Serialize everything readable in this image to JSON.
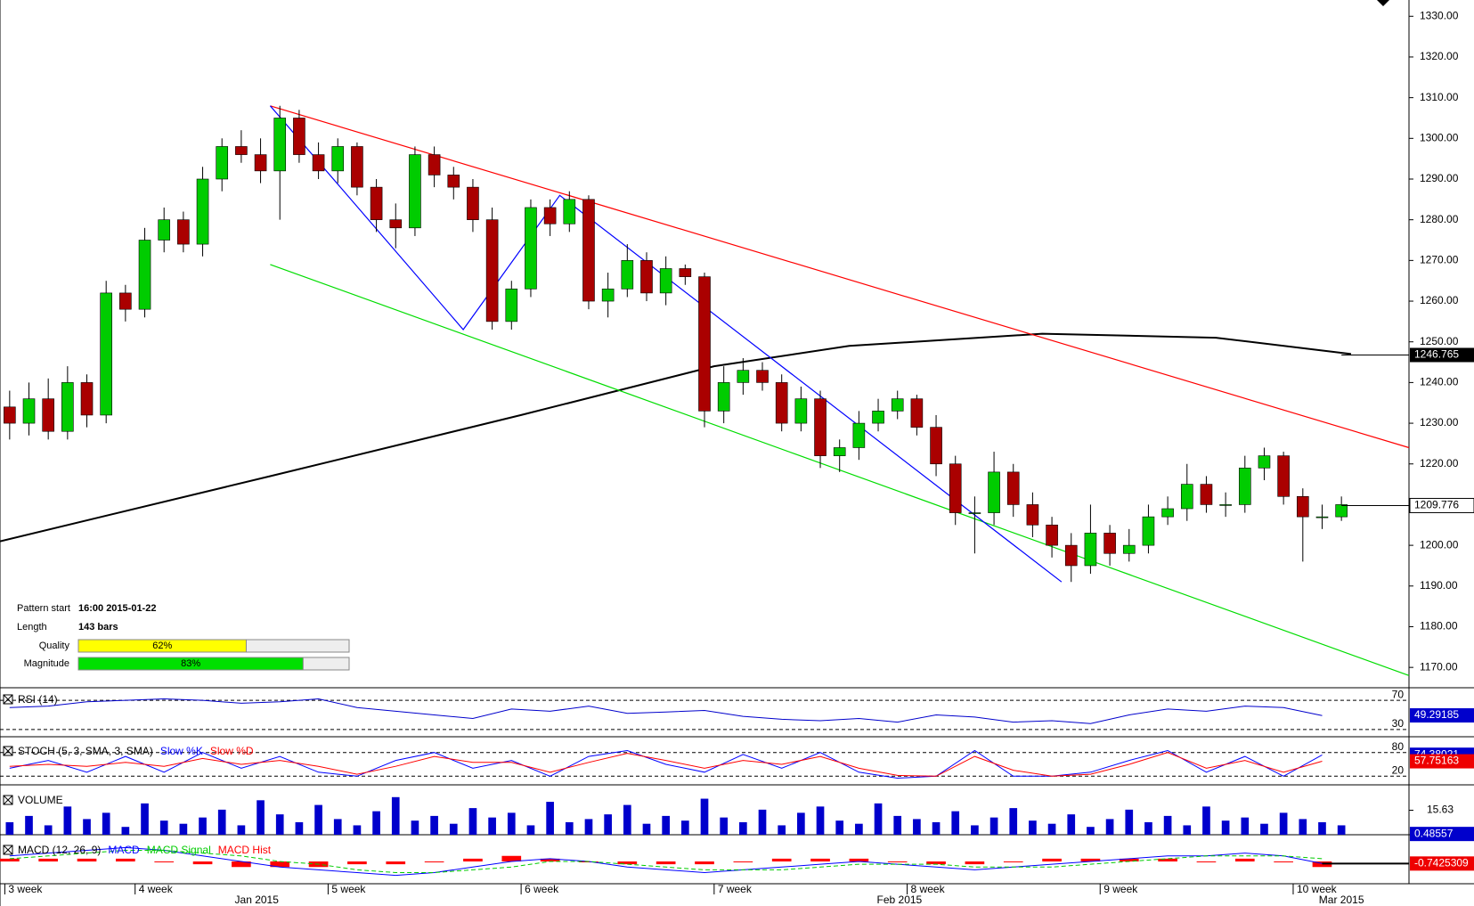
{
  "chart_data": [
    {
      "type": "candlestick",
      "xlim": [
        0,
        73
      ],
      "ylim": [
        1165,
        1334
      ],
      "yticks": [
        {
          "value": 1170,
          "label": "1170.00"
        },
        {
          "value": 1180,
          "label": "1180.00"
        },
        {
          "value": 1190,
          "label": "1190.00"
        },
        {
          "value": 1200,
          "label": "1200.00"
        },
        {
          "value": 1210,
          "label": "1210.00"
        },
        {
          "value": 1220,
          "label": "1220.00"
        },
        {
          "value": 1230,
          "label": "1230.00"
        },
        {
          "value": 1240,
          "label": "1240.00"
        },
        {
          "value": 1250,
          "label": "1250.00"
        },
        {
          "value": 1260,
          "label": "1260.00"
        },
        {
          "value": 1270,
          "label": "1270.00"
        },
        {
          "value": 1280,
          "label": "1280.00"
        },
        {
          "value": 1290,
          "label": "1290.00"
        },
        {
          "value": 1300,
          "label": "1300.00"
        },
        {
          "value": 1310,
          "label": "1310.00"
        },
        {
          "value": 1320,
          "label": "1320.00"
        },
        {
          "value": 1330,
          "label": "1330.00"
        }
      ],
      "xticks": [
        {
          "value": 0.25,
          "label": "3 week"
        },
        {
          "value": 7,
          "label": "4 week"
        },
        {
          "value": 17,
          "label": "5 week"
        },
        {
          "value": 27,
          "label": "6 week"
        },
        {
          "value": 37,
          "label": "7 week"
        },
        {
          "value": 47,
          "label": "8 week"
        },
        {
          "value": 57,
          "label": "9 week"
        },
        {
          "value": 67,
          "label": "10 week"
        }
      ],
      "month_ticks": [
        {
          "value": 13.3,
          "label": "Jan 2015"
        },
        {
          "value": 46.6,
          "label": "Feb 2015"
        },
        {
          "value": 69.5,
          "label": "Mar 2015"
        }
      ],
      "up_color": "#00cc00",
      "down_color": "#aa0000",
      "open": [
        1234,
        1230,
        1236,
        1228,
        1240,
        1232,
        1262,
        1258,
        1275,
        1280,
        1274,
        1290,
        1298,
        1296,
        1292,
        1305,
        1296,
        1292,
        1298,
        1288,
        1280,
        1278,
        1296,
        1291,
        1288,
        1280,
        1255,
        1263,
        1283,
        1279,
        1285,
        1260,
        1263,
        1270,
        1262,
        1268,
        1266,
        1233,
        1240,
        1243,
        1240,
        1230,
        1236,
        1222,
        1224,
        1230,
        1233,
        1236,
        1229,
        1220,
        1208,
        1208,
        1218,
        1210,
        1205,
        1200,
        1195,
        1203,
        1198,
        1200,
        1207,
        1209,
        1215,
        1210,
        1210,
        1219,
        1222,
        1212,
        1207,
        1207
      ],
      "high": [
        1238,
        1240,
        1241,
        1244,
        1242,
        1265,
        1264,
        1278,
        1283,
        1282,
        1293,
        1300,
        1302,
        1300,
        1308,
        1307,
        1299,
        1300,
        1299,
        1290,
        1284,
        1298,
        1298,
        1293,
        1290,
        1283,
        1265,
        1285,
        1285,
        1287,
        1286,
        1267,
        1274,
        1272,
        1271,
        1269,
        1267,
        1244,
        1246,
        1245,
        1242,
        1239,
        1238,
        1226,
        1233,
        1236,
        1238,
        1237,
        1232,
        1222,
        1212,
        1223,
        1220,
        1213,
        1207,
        1203,
        1210,
        1205,
        1204,
        1210,
        1212,
        1220,
        1217,
        1213,
        1222,
        1224,
        1223,
        1214,
        1210,
        1212
      ],
      "low": [
        1226,
        1227,
        1226,
        1226,
        1229,
        1230,
        1255,
        1256,
        1272,
        1272,
        1271,
        1287,
        1294,
        1289,
        1280,
        1294,
        1290,
        1289,
        1286,
        1277,
        1273,
        1276,
        1288,
        1285,
        1277,
        1253,
        1253,
        1261,
        1276,
        1277,
        1258,
        1256,
        1261,
        1260,
        1259,
        1264,
        1229,
        1230,
        1237,
        1238,
        1228,
        1228,
        1219,
        1218,
        1221,
        1228,
        1231,
        1227,
        1217,
        1205,
        1198,
        1205,
        1207,
        1202,
        1197,
        1191,
        1193,
        1195,
        1196,
        1198,
        1205,
        1206,
        1208,
        1207,
        1208,
        1216,
        1210,
        1196,
        1204,
        1206
      ],
      "close": [
        1230,
        1236,
        1228,
        1240,
        1232,
        1262,
        1258,
        1275,
        1280,
        1274,
        1290,
        1298,
        1296,
        1292,
        1305,
        1296,
        1292,
        1298,
        1288,
        1280,
        1278,
        1296,
        1291,
        1288,
        1280,
        1255,
        1263,
        1283,
        1279,
        1285,
        1260,
        1263,
        1270,
        1262,
        1268,
        1266,
        1233,
        1240,
        1243,
        1240,
        1230,
        1236,
        1222,
        1224,
        1230,
        1233,
        1236,
        1229,
        1220,
        1208,
        1208,
        1218,
        1210,
        1205,
        1200,
        1195,
        1203,
        1198,
        1200,
        1207,
        1209,
        1215,
        1210,
        1210,
        1219,
        1222,
        1212,
        1207,
        1207,
        1210
      ],
      "ma": {
        "color": "#000000",
        "x": [
          0,
          14,
          27,
          37,
          44,
          54,
          63,
          70
        ],
        "values": [
          1201,
          1217,
          1232,
          1244,
          1249,
          1252,
          1251,
          1247
        ]
      },
      "trend_lines": [
        {
          "color": "#ff0000",
          "x": [
            14,
            73
          ],
          "values": [
            1308,
            1224
          ]
        },
        {
          "color": "#00dd00",
          "x": [
            14,
            73
          ],
          "values": [
            1269,
            1168
          ]
        },
        {
          "color": "#0000ff",
          "x": [
            14,
            24,
            29,
            55
          ],
          "values": [
            1308,
            1253,
            1286,
            1191
          ]
        }
      ],
      "price_markers": [
        {
          "value": 1246.765,
          "style": "dark"
        },
        {
          "value": 1209.776,
          "style": "light"
        }
      ],
      "pattern": {
        "labels": [
          "Pattern start",
          "Length",
          "Quality",
          "Magnitude"
        ],
        "start": "16:00 2015-01-22",
        "length": "143 bars",
        "quality": 62,
        "quality_label": "62%",
        "quality_color": "#ffff00",
        "magnitude": 83,
        "magnitude_label": "83%",
        "magnitude_color": "#00e000",
        "lim": [
          0,
          100
        ]
      }
    },
    {
      "type": "line",
      "title": "RSI (14)",
      "ylim": [
        20,
        86
      ],
      "yticks": [
        70,
        30
      ],
      "x": [
        0.5,
        2.5,
        4.5,
        6.5,
        8.5,
        10.5,
        12.5,
        14.5,
        16.5,
        18.5,
        20.5,
        22.5,
        24.5,
        26.5,
        28.5,
        30.5,
        32.5,
        34.5,
        36.5,
        38.5,
        40.5,
        42.5,
        44.5,
        46.5,
        48.5,
        50.5,
        52.5,
        54.5,
        56.5,
        58.5,
        60.5,
        62.5,
        64.5,
        66.5,
        68.5
      ],
      "series": [
        {
          "color": "#0000cc",
          "values": [
            60,
            62,
            68,
            70,
            72,
            70,
            66,
            68,
            72,
            60,
            55,
            50,
            45,
            58,
            55,
            62,
            52,
            54,
            56,
            48,
            44,
            42,
            45,
            40,
            50,
            47,
            40,
            42,
            38,
            50,
            58,
            55,
            62,
            60,
            49
          ]
        }
      ],
      "current": [
        {
          "value": 49.29185,
          "color": "#0000cc"
        }
      ]
    },
    {
      "type": "line",
      "title": "STOCH (5, 3, SMA, 3, SMA)",
      "ylim": [
        -2,
        111
      ],
      "yticks": [
        80,
        20
      ],
      "x": [
        0.5,
        2.5,
        4.5,
        6.5,
        8.5,
        10.5,
        12.5,
        14.5,
        16.5,
        18.5,
        20.5,
        22.5,
        24.5,
        26.5,
        28.5,
        30.5,
        32.5,
        34.5,
        36.5,
        38.5,
        40.5,
        42.5,
        44.5,
        46.5,
        48.5,
        50.5,
        52.5,
        54.5,
        56.5,
        58.5,
        60.5,
        62.5,
        64.5,
        66.5,
        68.5
      ],
      "series": [
        {
          "name": "Slow %K",
          "color": "#0000ff",
          "values": [
            40,
            60,
            30,
            70,
            30,
            80,
            40,
            70,
            30,
            20,
            60,
            80,
            40,
            60,
            20,
            70,
            85,
            50,
            30,
            75,
            40,
            80,
            30,
            15,
            20,
            85,
            20,
            20,
            30,
            60,
            85,
            30,
            70,
            20,
            74
          ]
        },
        {
          "name": "Slow %D",
          "color": "#ff0000",
          "values": [
            45,
            50,
            45,
            55,
            45,
            65,
            50,
            60,
            45,
            25,
            45,
            70,
            55,
            55,
            30,
            55,
            78,
            60,
            40,
            60,
            50,
            70,
            40,
            22,
            20,
            70,
            35,
            20,
            25,
            50,
            80,
            40,
            60,
            30,
            58
          ]
        }
      ],
      "current": [
        {
          "value": 74.38021,
          "color": "#0000cc"
        },
        {
          "value": 57.75163,
          "color": "#ee0000"
        }
      ]
    },
    {
      "type": "bar",
      "title": "VOLUME",
      "ylim": [
        0,
        29
      ],
      "yticks": [
        15.63
      ],
      "color": "#0000cc",
      "values": [
        8,
        12,
        6,
        18,
        10,
        14,
        5,
        20,
        9,
        7,
        11,
        16,
        6,
        22,
        13,
        8,
        19,
        10,
        6,
        15,
        24,
        9,
        12,
        7,
        17,
        11,
        14,
        6,
        21,
        8,
        10,
        13,
        19,
        7,
        12,
        9,
        23,
        11,
        8,
        16,
        6,
        14,
        18,
        9,
        7,
        20,
        12,
        10,
        8,
        15,
        6,
        11,
        17,
        9,
        7,
        13,
        5,
        10,
        16,
        8,
        12,
        6,
        18,
        9,
        11,
        7,
        14,
        10,
        8,
        6
      ],
      "current": [
        {
          "value": 0.48557,
          "color": "#0000cc"
        }
      ]
    },
    {
      "type": "macd",
      "title": "MACD (12, 26, 9)",
      "ylim": [
        -8,
        8
      ],
      "x": [
        0.5,
        2.5,
        4.5,
        6.5,
        8.5,
        10.5,
        12.5,
        14.5,
        16.5,
        18.5,
        20.5,
        22.5,
        24.5,
        26.5,
        28.5,
        30.5,
        32.5,
        34.5,
        36.5,
        38.5,
        40.5,
        42.5,
        44.5,
        46.5,
        48.5,
        50.5,
        52.5,
        54.5,
        56.5,
        58.5,
        60.5,
        62.5,
        64.5,
        66.5,
        68.5
      ],
      "series": [
        {
          "name": "MACD",
          "color": "#0000ff",
          "values": [
            2,
            3,
            4,
            5,
            4,
            2,
            0,
            -2,
            -3,
            -4,
            -5,
            -4,
            -2,
            0,
            1,
            0,
            -2,
            -3,
            -4,
            -3,
            -2,
            -1,
            0,
            -1,
            -2,
            -3,
            -2,
            -1,
            0,
            1,
            2,
            2,
            3,
            2,
            -0.74
          ]
        },
        {
          "name": "MACD Signal",
          "color": "#00cc00",
          "values": [
            1,
            2,
            3,
            4,
            4,
            3,
            2,
            0,
            -1,
            -3,
            -4,
            -4,
            -3,
            -2,
            0,
            0,
            -1,
            -2,
            -3,
            -3,
            -3,
            -2,
            -1,
            -1,
            -1,
            -2,
            -2,
            -2,
            -1,
            0,
            1,
            2,
            2,
            2,
            1
          ]
        },
        {
          "name": "MACD Hist",
          "color": "#ff0000",
          "values": [
            1,
            1,
            1,
            1,
            0,
            -1,
            -2,
            -2,
            -2,
            -1,
            -1,
            0,
            1,
            2,
            1,
            0,
            -1,
            -1,
            -1,
            0,
            1,
            1,
            1,
            0,
            -1,
            -1,
            0,
            1,
            1,
            1,
            1,
            0,
            1,
            0,
            -2
          ]
        }
      ],
      "current": [
        {
          "value": -0.7425309,
          "color": "#ee0000"
        }
      ]
    }
  ]
}
